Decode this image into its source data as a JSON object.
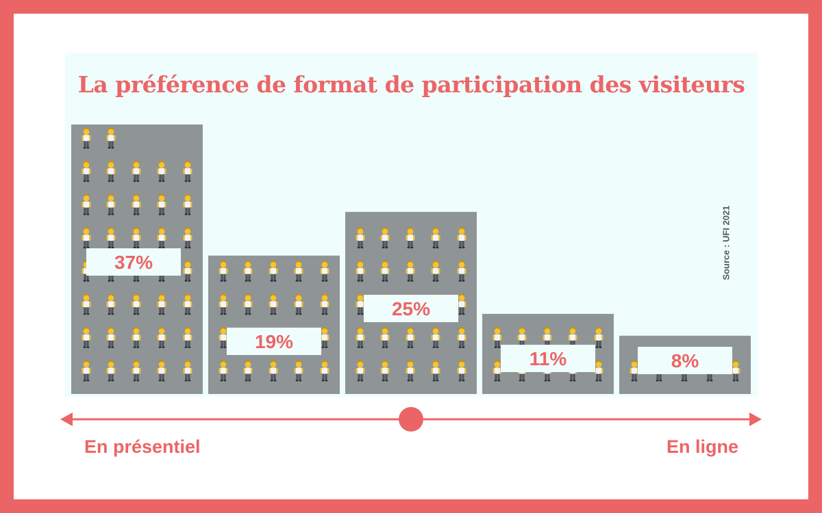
{
  "title": "La préférence de format de participation des visiteurs",
  "source": "Source : UFI 2021",
  "axis": {
    "left_label": "En présentiel",
    "right_label": "En ligne"
  },
  "colors": {
    "accent": "#ec6566",
    "bar": "#8f9596",
    "panel": "#effdfd",
    "label_box": "#effdfd"
  },
  "icon": "person-icon",
  "chart_data": {
    "type": "bar",
    "title": "La préférence de format de participation des visiteurs",
    "categories": [
      "",
      "",
      "",
      "",
      ""
    ],
    "values": [
      37,
      19,
      25,
      11,
      8
    ],
    "value_labels": [
      "37%",
      "19%",
      "25%",
      "11%",
      "8%"
    ],
    "unit": "%",
    "ylim": [
      0,
      37
    ],
    "grid": false,
    "legend": "none"
  }
}
